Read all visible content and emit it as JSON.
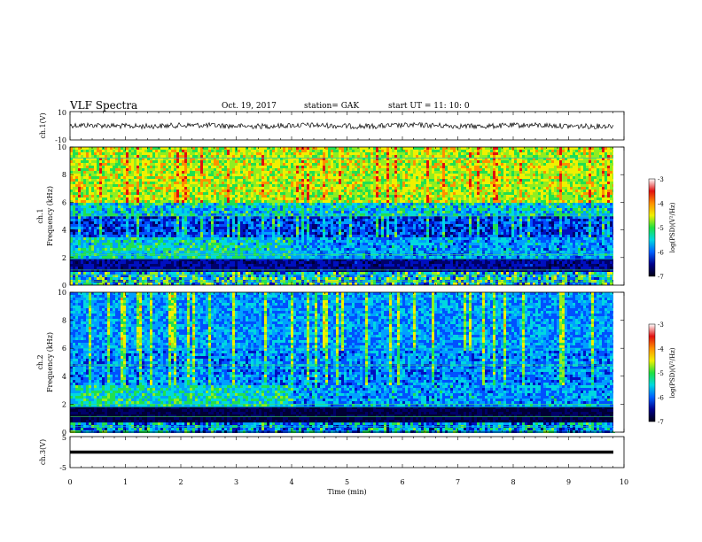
{
  "header": {
    "title": "VLF Spectra",
    "date": "Oct. 19, 2017",
    "station": "station= GAK",
    "start": "start  UT  =   11: 10: 0"
  },
  "chart_data": [
    {
      "type": "line",
      "panel": "ch1-waveform",
      "ylabel": "ch.1(V)",
      "ylim": [
        -10,
        10
      ],
      "yticks": [
        "10",
        "-10"
      ],
      "xlim": [
        0,
        10
      ],
      "level": 0,
      "color": "#000000"
    },
    {
      "type": "heatmap",
      "panel": "ch1-spectrogram",
      "ylabel_line1": "ch.1",
      "ylabel_line2": "Frequency (kHz)",
      "ylim": [
        0,
        10
      ],
      "yticks": [
        0,
        2,
        4,
        6,
        8,
        10
      ],
      "xlim": [
        0,
        10
      ],
      "colorbar": {
        "label": "log(PSD)(V²/Hz)",
        "range": [
          -7,
          -3
        ],
        "ticks": [
          "-3",
          "-4",
          "-5",
          "-6",
          "-7"
        ]
      }
    },
    {
      "type": "heatmap",
      "panel": "ch2-spectrogram",
      "ylabel_line1": "ch.2",
      "ylabel_line2": "Frequency (kHz)",
      "ylim": [
        0,
        10
      ],
      "yticks": [
        0,
        2,
        4,
        6,
        8,
        10
      ],
      "xlim": [
        0,
        10
      ],
      "colorbar": {
        "label": "log(PSD)(V²/Hz)",
        "range": [
          -7,
          -3
        ],
        "ticks": [
          "-3",
          "-4",
          "-5",
          "-6",
          "-7"
        ]
      }
    },
    {
      "type": "line",
      "panel": "ch3-waveform",
      "ylabel": "ch.3(V)",
      "ylim": [
        -5,
        5
      ],
      "yticks": [
        "5",
        "-5"
      ],
      "xlim": [
        0,
        10
      ],
      "level": 0,
      "color": "#000000",
      "xlabel": "Time (min)",
      "xticks": [
        "0",
        "1",
        "2",
        "3",
        "4",
        "5",
        "6",
        "7",
        "8",
        "9",
        "10"
      ]
    }
  ],
  "colors": {
    "dark": "#000022",
    "deep_blue": "#00008b",
    "blue": "#0044ff",
    "cyan": "#00d0e0",
    "green": "#20e040",
    "yellow": "#f0f000",
    "orange": "#ff9000",
    "red": "#e01010"
  }
}
